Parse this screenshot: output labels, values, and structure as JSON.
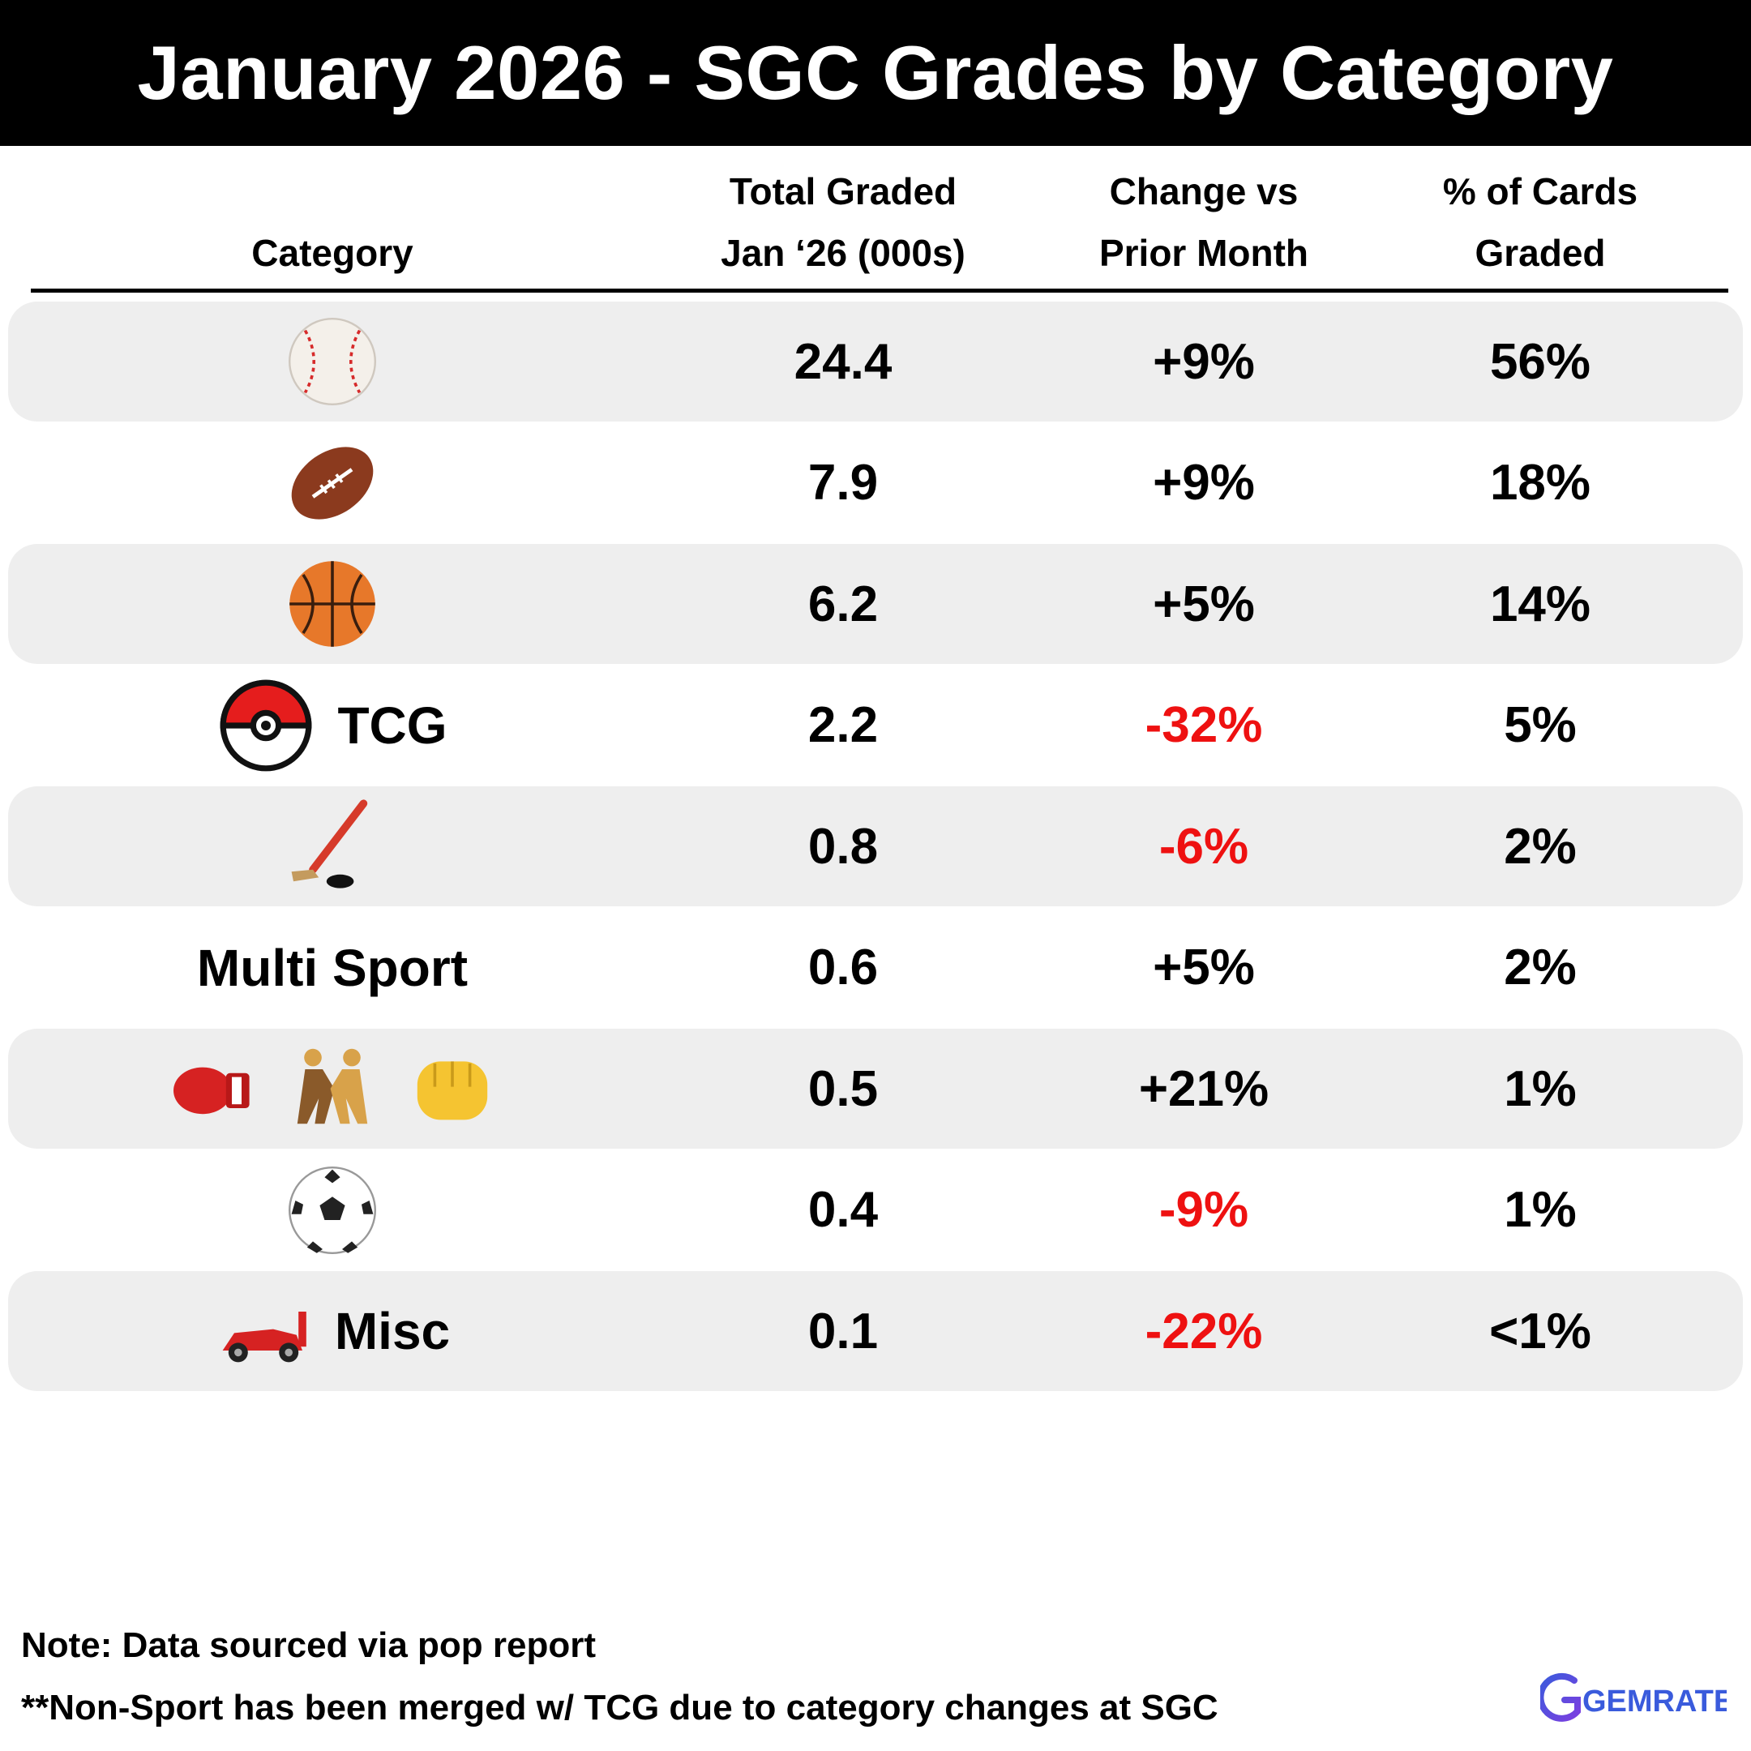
{
  "title": "January 2026 - SGC Grades by Category",
  "headers": {
    "category": "Category",
    "total_l1": "Total Graded",
    "total_l2": "Jan ‘26 (000s)",
    "change_l1": "Change vs",
    "change_l2": "Prior Month",
    "pct_l1": "% of Cards",
    "pct_l2": "Graded"
  },
  "colors": {
    "negative": "#ee1111",
    "row_shade": "#eeeeee",
    "brand_blue": "#3a5bdc",
    "brand_purple": "#7b3fe0"
  },
  "chart_data": {
    "type": "table",
    "columns": [
      "Category",
      "Total Graded Jan ‘26 (000s)",
      "Change vs Prior Month",
      "% of Cards Graded"
    ],
    "rows": [
      {
        "icons": [
          "baseball-icon"
        ],
        "label": "",
        "total": "24.4",
        "change": "+9%",
        "pct": "56%",
        "negative": false
      },
      {
        "icons": [
          "football-icon"
        ],
        "label": "",
        "total": "7.9",
        "change": "+9%",
        "pct": "18%",
        "negative": false
      },
      {
        "icons": [
          "basketball-icon"
        ],
        "label": "",
        "total": "6.2",
        "change": "+5%",
        "pct": "14%",
        "negative": false
      },
      {
        "icons": [
          "pokeball-icon"
        ],
        "label": "TCG",
        "total": "2.2",
        "change": "-32%",
        "pct": "5%",
        "negative": true
      },
      {
        "icons": [
          "hockey-icon"
        ],
        "label": "",
        "total": "0.8",
        "change": "-6%",
        "pct": "2%",
        "negative": true
      },
      {
        "icons": [],
        "label": "Multi Sport",
        "total": "0.6",
        "change": "+5%",
        "pct": "2%",
        "negative": false
      },
      {
        "icons": [
          "boxing-glove-icon",
          "wrestlers-icon",
          "fist-icon"
        ],
        "label": "",
        "total": "0.5",
        "change": "+21%",
        "pct": "1%",
        "negative": false
      },
      {
        "icons": [
          "soccer-ball-icon"
        ],
        "label": "",
        "total": "0.4",
        "change": "-9%",
        "pct": "1%",
        "negative": true
      },
      {
        "icons": [
          "race-car-icon"
        ],
        "label": "Misc",
        "total": "0.1",
        "change": "-22%",
        "pct": "<1%",
        "negative": true
      }
    ]
  },
  "notes": {
    "line1": "Note: Data sourced via pop report",
    "line2": "**Non-Sport has been merged w/ TCG due to category changes at SGC"
  },
  "logo": {
    "text": "GEMRATE"
  }
}
